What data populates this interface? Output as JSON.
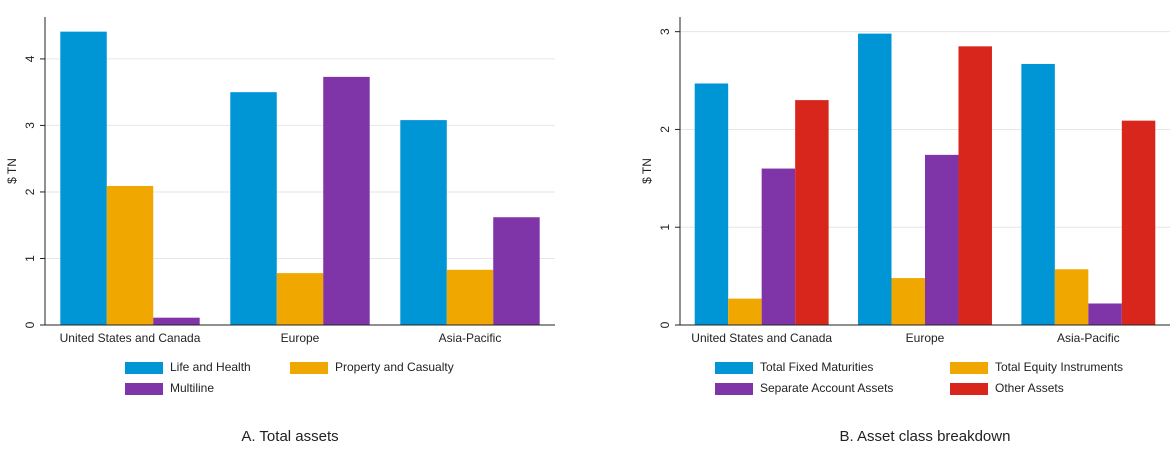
{
  "chart_data": [
    {
      "type": "bar",
      "title": "A. Total assets",
      "ylabel": "$ TN",
      "categories": [
        "United States and Canada",
        "Europe",
        "Asia-Pacific"
      ],
      "series": [
        {
          "name": "Life and Health",
          "color": "#0096d6",
          "values": [
            4.41,
            3.5,
            3.08
          ]
        },
        {
          "name": "Property and Casualty",
          "color": "#f0a800",
          "values": [
            2.09,
            0.78,
            0.83
          ]
        },
        {
          "name": "Multiline",
          "color": "#7f35a8",
          "values": [
            0.11,
            3.73,
            1.62
          ]
        }
      ],
      "ylim": [
        0,
        4.63
      ],
      "yticks": [
        0,
        1,
        2,
        3,
        4
      ],
      "grid": true
    },
    {
      "type": "bar",
      "title": "B. Asset class breakdown",
      "ylabel": "$ TN",
      "categories": [
        "United States and Canada",
        "Europe",
        "Asia-Pacific"
      ],
      "series": [
        {
          "name": "Total Fixed Maturities",
          "color": "#0096d6",
          "values": [
            2.47,
            2.98,
            2.67
          ]
        },
        {
          "name": "Total Equity Instruments",
          "color": "#f0a800",
          "values": [
            0.27,
            0.48,
            0.57
          ]
        },
        {
          "name": "Separate Account Assets",
          "color": "#7f35a8",
          "values": [
            1.6,
            1.74,
            0.22
          ]
        },
        {
          "name": "Other Assets",
          "color": "#d9261c",
          "values": [
            2.3,
            2.85,
            2.09
          ]
        }
      ],
      "ylim": [
        0,
        3.15
      ],
      "yticks": [
        0,
        1,
        2,
        3
      ],
      "grid": true
    }
  ]
}
